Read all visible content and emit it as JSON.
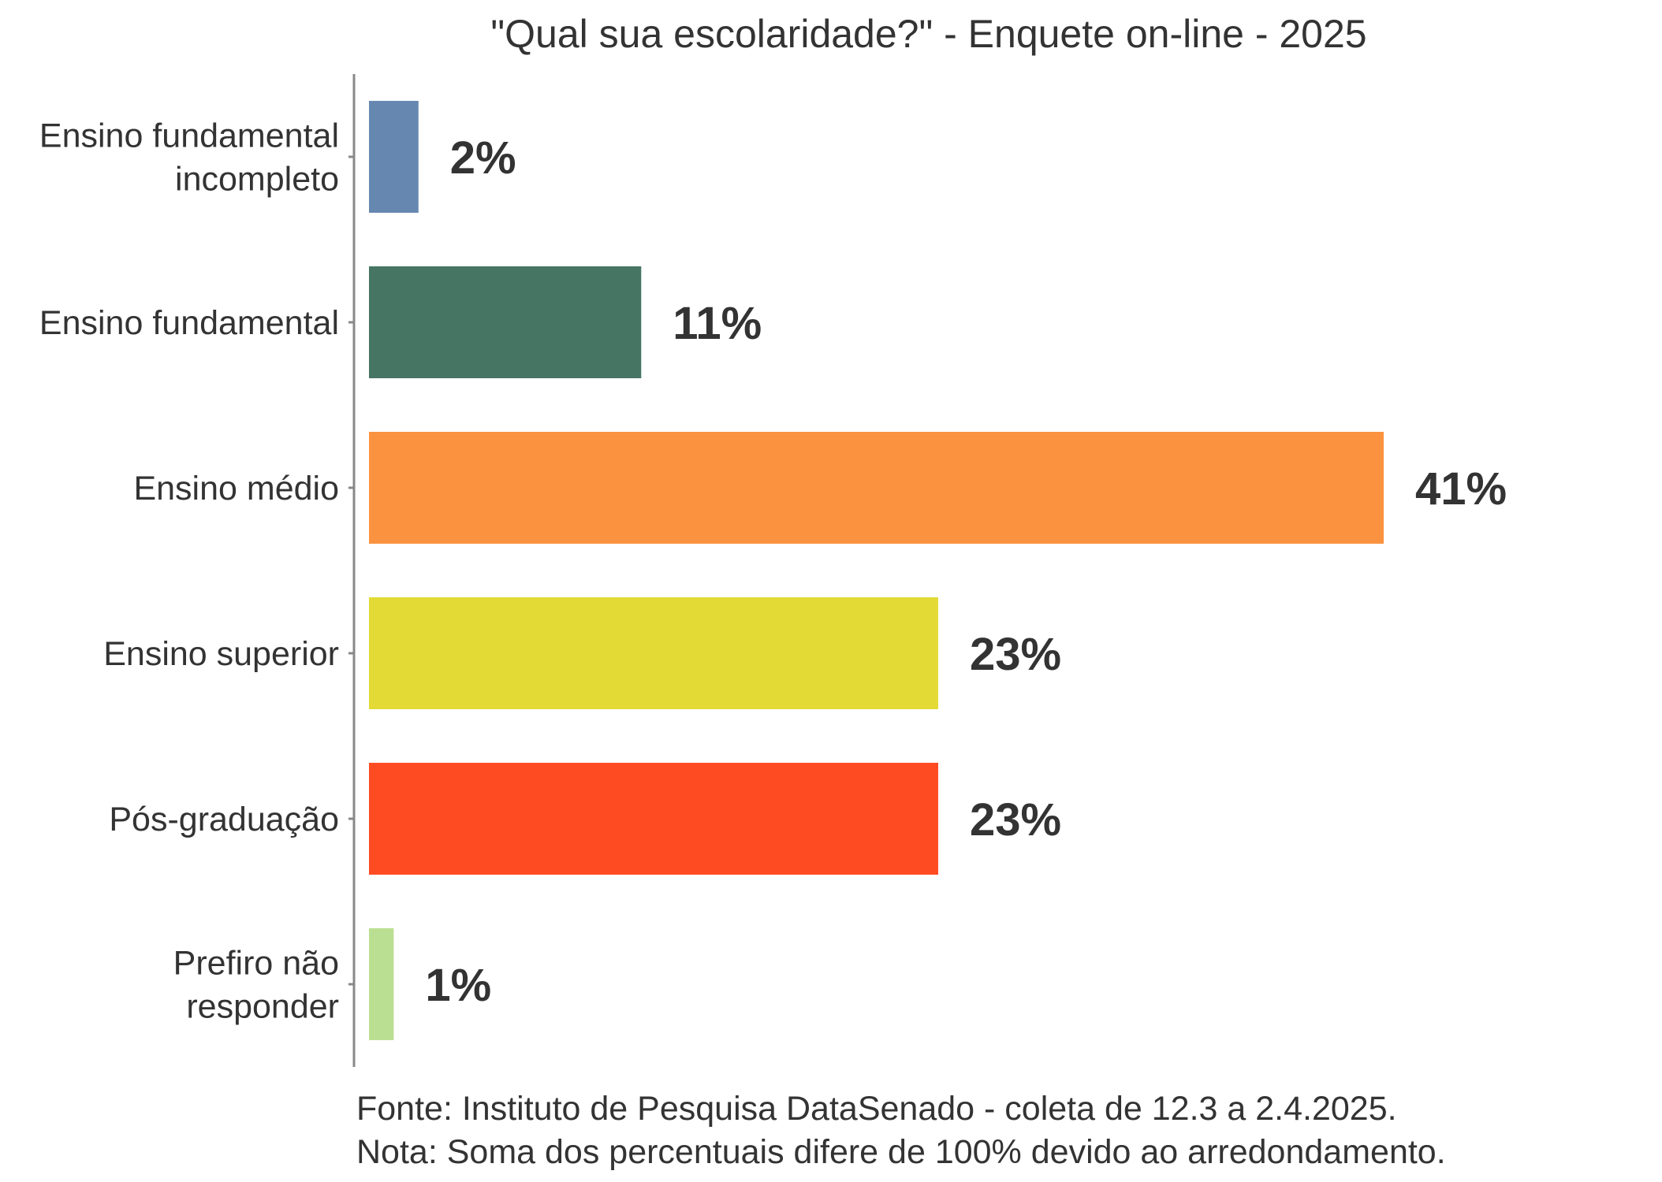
{
  "chart_data": {
    "type": "bar",
    "orientation": "horizontal",
    "title": "\"Qual sua escolaridade?\" - Enquete on-line - 2025",
    "categories": [
      [
        "Ensino fundamental",
        "incompleto"
      ],
      [
        "Ensino fundamental"
      ],
      [
        "Ensino médio"
      ],
      [
        "Ensino superior"
      ],
      [
        "Pós-graduação"
      ],
      [
        "Prefiro não",
        "responder"
      ]
    ],
    "values": [
      2,
      11,
      41,
      23,
      23,
      1
    ],
    "value_labels": [
      "2%",
      "11%",
      "41%",
      "23%",
      "23%",
      "1%"
    ],
    "colors": [
      "#6688b0",
      "#467563",
      "#fb923f",
      "#e3da36",
      "#fe4b22",
      "#badf92"
    ],
    "xlim": [
      0,
      41
    ],
    "legend": "none",
    "grid": false
  },
  "footer": {
    "source": "Fonte: Instituto de Pesquisa DataSenado - coleta de 12.3 a 2.4.2025.",
    "note": "Nota: Soma dos percentuais difere de 100% devido ao arredondamento."
  }
}
